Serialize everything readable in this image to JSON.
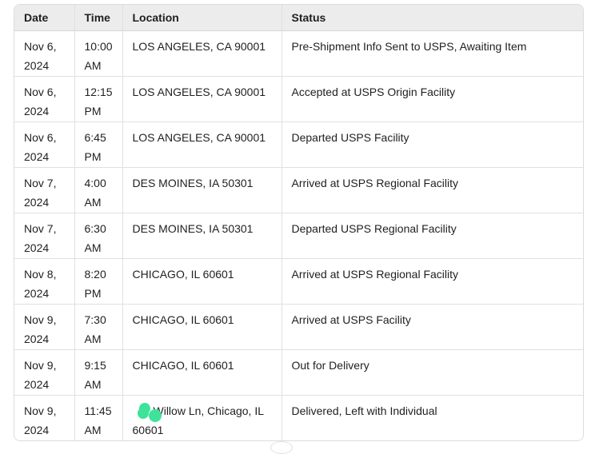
{
  "table": {
    "headers": [
      "Date",
      "Time",
      "Location",
      "Status"
    ],
    "rows": [
      {
        "date": "Nov 6, 2024",
        "time": "10:00 AM",
        "location": "LOS ANGELES, CA 90001",
        "status": "Pre-Shipment Info Sent to USPS, Awaiting Item"
      },
      {
        "date": "Nov 6, 2024",
        "time": "12:15 PM",
        "location": "LOS ANGELES, CA 90001",
        "status": "Accepted at USPS Origin Facility"
      },
      {
        "date": "Nov 6, 2024",
        "time": "6:45 PM",
        "location": "LOS ANGELES, CA 90001",
        "status": "Departed USPS Facility"
      },
      {
        "date": "Nov 7, 2024",
        "time": "4:00 AM",
        "location": "DES MOINES, IA 50301",
        "status": "Arrived at USPS Regional Facility"
      },
      {
        "date": "Nov 7, 2024",
        "time": "6:30 AM",
        "location": "DES MOINES, IA 50301",
        "status": "Departed USPS Regional Facility"
      },
      {
        "date": "Nov 8, 2024",
        "time": "8:20 PM",
        "location": "CHICAGO, IL 60601",
        "status": "Arrived at USPS Regional Facility"
      },
      {
        "date": "Nov 9, 2024",
        "time": "7:30 AM",
        "location": "CHICAGO, IL 60601",
        "status": "Arrived at USPS Facility"
      },
      {
        "date": "Nov 9, 2024",
        "time": "9:15 AM",
        "location": "CHICAGO, IL 60601",
        "status": "Out for Delivery"
      },
      {
        "date": "Nov 9, 2024",
        "time": "11:45 AM",
        "location": "Willow Ln, Chicago, IL 60601",
        "status": "Delivered, Left with Individual",
        "redacted": true
      }
    ]
  },
  "colors": {
    "redaction": "#3ee39a",
    "header_bg": "#ececec"
  }
}
